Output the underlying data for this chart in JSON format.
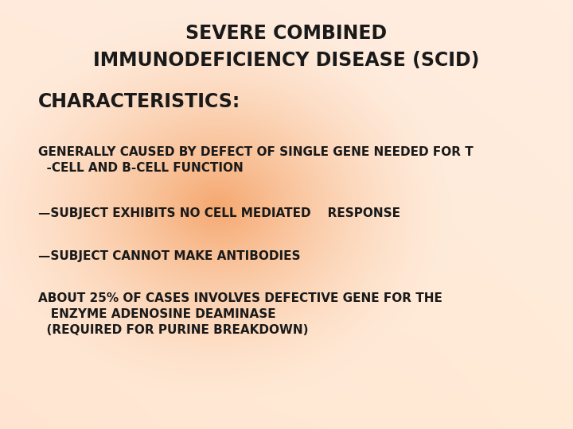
{
  "title_line1": "SEVERE COMBINED",
  "title_line2": "IMMUNODEFICIENCY DISEASE (SCID)",
  "section_header": "CHARACTERISTICS:",
  "bullet1_line1": "GENERALLY CAUSED BY DEFECT OF SINGLE GENE NEEDED FOR T",
  "bullet1_line2": "  -CELL AND B-CELL FUNCTION",
  "bullet2": "—SUBJECT EXHIBITS NO CELL MEDIATED    RESPONSE",
  "bullet3": "—SUBJECT CANNOT MAKE ANTIBODIES",
  "bullet4_line1": "ABOUT 25% OF CASES INVOLVES DEFECTIVE GENE FOR THE",
  "bullet4_line2": "   ENZYME ADENOSINE DEAMINASE",
  "bullet4_line3": "  (REQUIRED FOR PURINE BREAKDOWN)",
  "text_color": "#1a1a1a",
  "title_fontsize": 17,
  "header_fontsize": 17,
  "body_fontsize": 11,
  "fig_width": 7.2,
  "fig_height": 5.4,
  "dpi": 100
}
